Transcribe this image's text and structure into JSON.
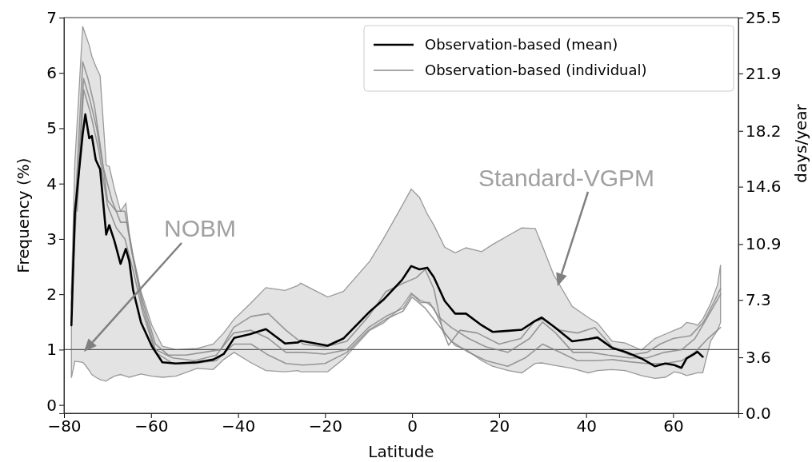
{
  "chart_data": {
    "type": "line",
    "xlabel": "Latitude",
    "ylabel": "Frequency (%)",
    "y2label": "days/year",
    "xlim": [
      -80,
      75
    ],
    "xticks": [
      {
        "value": -80,
        "label": "−80"
      },
      {
        "value": -60,
        "label": "−60"
      },
      {
        "value": -40,
        "label": "−40"
      },
      {
        "value": -20,
        "label": "−20"
      },
      0,
      20,
      40,
      60
    ],
    "ylim": [
      -0.15,
      7
    ],
    "yticks": [
      0,
      1,
      2,
      3,
      4,
      5,
      6,
      7
    ],
    "y2lim": [
      0,
      25.5
    ],
    "y2ticks": [
      {
        "value": 0,
        "label": "0.0"
      },
      3.6,
      7.3,
      10.9,
      14.6,
      18.2,
      21.9,
      25.5
    ],
    "grid": false,
    "legend": "top right",
    "line_style": "solid",
    "marker": "none",
    "ref_lines": [
      {
        "axis": "y",
        "value": 1,
        "color": "#555555"
      }
    ],
    "annotations": [
      "NOBM",
      "Standard-VGPM"
    ],
    "series": [
      {
        "name": "Observation-based (individual)",
        "color": "#888888",
        "x": [
          -78.3,
          -77,
          -75.7,
          -74.5,
          -73,
          -71.5,
          -70,
          -68,
          -66,
          -64.5,
          -62,
          -59,
          -56,
          -52,
          -48,
          -44,
          -41,
          -37,
          -33,
          -29,
          -25,
          -20,
          -15,
          -10,
          -6,
          -2,
          1,
          3,
          5,
          7,
          8.4,
          11,
          15,
          20,
          25,
          28,
          30,
          34,
          38,
          42,
          46,
          50,
          54,
          57,
          60,
          64,
          67,
          69,
          70.9
        ],
        "values": [
          2.0,
          4.2,
          6.2,
          5.9,
          5.4,
          4.6,
          3.7,
          3.5,
          3.5,
          2.8,
          1.9,
          1.1,
          0.9,
          0.9,
          0.95,
          1.0,
          1.4,
          1.6,
          1.65,
          1.35,
          1.1,
          1.05,
          1.15,
          1.6,
          2.05,
          2.2,
          2.3,
          2.45,
          2.1,
          1.35,
          1.08,
          1.35,
          1.3,
          1.1,
          1.2,
          1.5,
          1.55,
          1.35,
          1.3,
          1.4,
          1.05,
          0.9,
          0.95,
          1.1,
          1.2,
          1.25,
          1.5,
          1.8,
          2.1
        ]
      },
      {
        "color": "#888888",
        "x": [
          -78.3,
          -77,
          -75.5,
          -74,
          -72.5,
          -71,
          -69,
          -67,
          -65.5,
          -64,
          -62,
          -59,
          -55,
          -50,
          -45,
          -41,
          -37,
          -33,
          -29,
          -25,
          -20,
          -15,
          -10,
          -6,
          -2,
          0,
          2,
          4,
          6,
          9,
          13,
          17,
          22,
          27,
          30,
          33,
          37,
          41,
          45,
          50,
          54,
          58,
          62,
          65,
          68,
          70.9
        ],
        "values": [
          1.8,
          3.8,
          5.9,
          5.5,
          5.0,
          4.3,
          3.7,
          3.3,
          3.3,
          2.6,
          1.8,
          1.0,
          0.85,
          0.8,
          0.9,
          1.3,
          1.35,
          1.2,
          0.95,
          0.95,
          0.92,
          1.0,
          1.4,
          1.6,
          1.75,
          2.0,
          1.85,
          1.85,
          1.6,
          1.4,
          1.2,
          1.05,
          0.95,
          1.2,
          1.5,
          1.3,
          0.95,
          0.95,
          0.9,
          0.85,
          0.85,
          0.95,
          1.0,
          1.2,
          1.6,
          2.0
        ]
      },
      {
        "color": "#888888",
        "x": [
          -77,
          -75.5,
          -74,
          -72,
          -70,
          -68,
          -66,
          -64,
          -62,
          -59,
          -55,
          -50,
          -45,
          -41,
          -37,
          -33,
          -29,
          -25,
          -20,
          -15,
          -10,
          -6,
          -2,
          0,
          3,
          6,
          9,
          13,
          17,
          22,
          26,
          30,
          34,
          38,
          42,
          46,
          50,
          54,
          58,
          62,
          65,
          68,
          70.9
        ],
        "values": [
          3.5,
          5.7,
          5.3,
          4.6,
          3.6,
          3.2,
          3.0,
          2.4,
          1.7,
          0.95,
          0.75,
          0.75,
          0.8,
          1.1,
          1.1,
          0.9,
          0.75,
          0.72,
          0.75,
          0.95,
          1.35,
          1.55,
          1.7,
          1.95,
          1.75,
          1.45,
          1.15,
          0.95,
          0.8,
          0.7,
          0.85,
          1.1,
          0.95,
          0.8,
          0.8,
          0.82,
          0.78,
          0.75,
          0.75,
          0.8,
          0.95,
          1.2,
          1.4
        ]
      },
      {
        "name": "Observation-based (mean)",
        "color": "#000000",
        "x": [
          -78.3,
          -77.5,
          -75.7,
          -75.1,
          -74.2,
          -73.6,
          -72.7,
          -71.7,
          -70.3,
          -69.6,
          -68.4,
          -67,
          -65.8,
          -65,
          -64.1,
          -62.3,
          -59.8,
          -57.4,
          -54.3,
          -49.4,
          -45.7,
          -43.3,
          -40.9,
          -37.2,
          -33.6,
          -29.2,
          -26.2,
          -25.6,
          -19.4,
          -15.8,
          -9.7,
          -6.6,
          -2.3,
          -0.2,
          1.7,
          3.5,
          5,
          7.5,
          9.9,
          12.4,
          16,
          18.5,
          22.1,
          25.2,
          28.3,
          29.8,
          32.5,
          36.8,
          40.5,
          42.6,
          46,
          49,
          52.7,
          55.8,
          58.2,
          60.3,
          61.9,
          63.1,
          64.6,
          65.6,
          66.8,
          68.6,
          70.2,
          70.9
        ],
        "values": [
          1.44,
          3.47,
          4.9,
          5.25,
          4.82,
          4.86,
          4.43,
          4.26,
          3.08,
          3.25,
          2.96,
          2.55,
          2.82,
          2.6,
          2.07,
          1.49,
          1.06,
          0.77,
          0.75,
          0.77,
          0.82,
          0.92,
          1.21,
          1.28,
          1.37,
          1.11,
          1.13,
          1.16,
          1.07,
          1.2,
          1.69,
          1.9,
          2.26,
          2.51,
          2.45,
          2.48,
          2.31,
          1.88,
          1.65,
          1.65,
          1.44,
          1.32,
          1.34,
          1.36,
          1.52,
          1.58,
          1.42,
          1.15,
          1.19,
          1.22,
          1.03,
          0.96,
          0.84,
          0.7,
          0.75,
          0.72,
          0.67,
          0.84,
          0.91,
          0.96,
          0.87,
          null,
          null,
          null
        ],
        "lower": [
          0.49,
          0.79,
          0.77,
          0.72,
          0.62,
          0.55,
          0.5,
          0.46,
          0.43,
          0.47,
          0.52,
          0.55,
          0.52,
          0.5,
          0.52,
          0.56,
          0.52,
          0.5,
          0.52,
          0.66,
          0.64,
          0.82,
          0.95,
          0.77,
          0.62,
          0.6,
          0.62,
          0.6,
          0.6,
          0.83,
          1.35,
          1.48,
          1.78,
          2.02,
          1.9,
          1.84,
          1.75,
          1.3,
          1.07,
          1.0,
          0.8,
          0.7,
          0.62,
          0.58,
          0.75,
          0.76,
          0.72,
          0.66,
          0.58,
          0.62,
          0.64,
          0.62,
          0.53,
          0.48,
          0.5,
          0.6,
          0.57,
          0.53,
          0.56,
          0.58,
          0.58,
          1.15,
          1.35,
          1.49
        ],
        "upper": [
          2.07,
          4.38,
          6.84,
          6.7,
          6.5,
          6.3,
          6.12,
          5.95,
          4.33,
          4.31,
          3.9,
          3.5,
          3.64,
          3.1,
          2.7,
          2.05,
          1.44,
          1.06,
          1.0,
          1.02,
          1.1,
          1.3,
          1.55,
          1.83,
          2.12,
          2.07,
          2.16,
          2.2,
          1.95,
          2.05,
          2.6,
          3.0,
          3.6,
          3.9,
          3.75,
          3.45,
          3.25,
          2.85,
          2.75,
          2.84,
          2.77,
          2.9,
          3.06,
          3.2,
          3.19,
          2.9,
          2.36,
          1.78,
          1.58,
          1.48,
          1.15,
          1.12,
          0.99,
          1.2,
          1.28,
          1.35,
          1.4,
          1.49,
          1.47,
          1.44,
          1.55,
          1.83,
          2.17,
          2.53
        ]
      }
    ]
  }
}
